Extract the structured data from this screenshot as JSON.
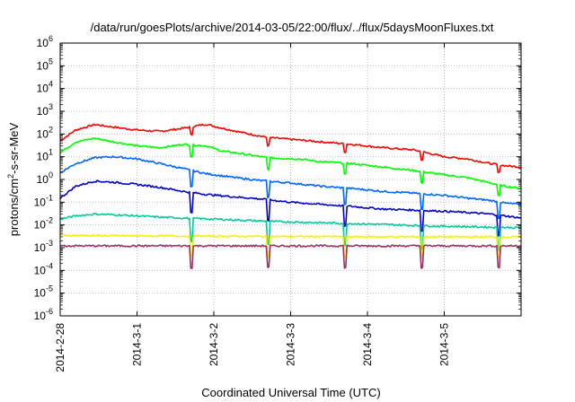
{
  "chart_data": {
    "type": "line",
    "title": "/data/run/goesPlots/archive/2014-03-05/22:00/flux/../flux/5daysMoonFluxes.txt",
    "xlabel": "Coordinated Universal Time (UTC)",
    "ylabel": {
      "pre": "protons/cm",
      "sup": "2",
      "post": "-s-sr-MeV"
    },
    "yscale": "log",
    "ylim_exp": [
      -6,
      6
    ],
    "ytick_exponents": [
      6,
      5,
      4,
      3,
      2,
      1,
      0,
      -1,
      -2,
      -3,
      -4,
      -5,
      -6
    ],
    "xlim_days": [
      0,
      6.0
    ],
    "x_ticks": [
      {
        "day": 0,
        "label": "2014-2-28"
      },
      {
        "day": 1,
        "label": "2014-3-1"
      },
      {
        "day": 2,
        "label": "2014-3-2"
      },
      {
        "day": 3,
        "label": "2014-3-3"
      },
      {
        "day": 4,
        "label": "2014-3-4"
      },
      {
        "day": 5,
        "label": "2014-3-5"
      }
    ],
    "grid": true,
    "dip_days": [
      1.71,
      2.71,
      3.71,
      4.71,
      5.71
    ],
    "series": [
      {
        "color": "#ff0000",
        "points": [
          [
            0.0,
            50
          ],
          [
            0.2,
            150
          ],
          [
            0.45,
            260
          ],
          [
            0.7,
            200
          ],
          [
            1.0,
            150
          ],
          [
            1.3,
            130
          ],
          [
            1.6,
            180
          ],
          [
            1.9,
            270
          ],
          [
            2.05,
            200
          ],
          [
            2.4,
            110
          ],
          [
            2.7,
            70
          ],
          [
            3.1,
            55
          ],
          [
            3.4,
            45
          ],
          [
            3.8,
            35
          ],
          [
            4.2,
            25
          ],
          [
            4.6,
            20
          ],
          [
            5.0,
            10
          ],
          [
            5.3,
            8
          ],
          [
            5.6,
            5
          ],
          [
            5.8,
            4
          ],
          [
            6.0,
            3.5
          ]
        ]
      },
      {
        "color": "#00ff00",
        "points": [
          [
            0.0,
            15
          ],
          [
            0.2,
            45
          ],
          [
            0.45,
            65
          ],
          [
            0.7,
            45
          ],
          [
            1.0,
            30
          ],
          [
            1.3,
            25
          ],
          [
            1.6,
            35
          ],
          [
            1.9,
            30
          ],
          [
            2.1,
            18
          ],
          [
            2.4,
            13
          ],
          [
            2.7,
            9
          ],
          [
            3.1,
            8
          ],
          [
            3.4,
            6
          ],
          [
            3.8,
            5
          ],
          [
            4.2,
            3.5
          ],
          [
            4.6,
            2.5
          ],
          [
            5.0,
            1.6
          ],
          [
            5.3,
            1.2
          ],
          [
            5.6,
            0.7
          ],
          [
            5.8,
            0.5
          ],
          [
            6.0,
            0.4
          ]
        ]
      },
      {
        "color": "#0066ff",
        "points": [
          [
            0.0,
            2
          ],
          [
            0.2,
            5
          ],
          [
            0.45,
            9
          ],
          [
            0.7,
            10
          ],
          [
            1.0,
            8
          ],
          [
            1.3,
            5
          ],
          [
            1.6,
            3
          ],
          [
            1.9,
            1.8
          ],
          [
            2.2,
            1.3
          ],
          [
            2.6,
            0.9
          ],
          [
            3.0,
            0.7
          ],
          [
            3.4,
            0.5
          ],
          [
            3.8,
            0.4
          ],
          [
            4.2,
            0.3
          ],
          [
            4.6,
            0.25
          ],
          [
            5.0,
            0.2
          ],
          [
            5.3,
            0.15
          ],
          [
            5.6,
            0.12
          ],
          [
            5.8,
            0.09
          ],
          [
            6.0,
            0.08
          ]
        ]
      },
      {
        "color": "#0000cc",
        "points": [
          [
            0.0,
            0.15
          ],
          [
            0.2,
            0.5
          ],
          [
            0.45,
            0.85
          ],
          [
            0.7,
            0.75
          ],
          [
            1.0,
            0.6
          ],
          [
            1.3,
            0.45
          ],
          [
            1.6,
            0.3
          ],
          [
            1.9,
            0.22
          ],
          [
            2.2,
            0.18
          ],
          [
            2.6,
            0.14
          ],
          [
            3.0,
            0.1
          ],
          [
            3.4,
            0.08
          ],
          [
            3.8,
            0.065
          ],
          [
            4.2,
            0.05
          ],
          [
            4.6,
            0.045
          ],
          [
            5.0,
            0.04
          ],
          [
            5.3,
            0.035
          ],
          [
            5.6,
            0.03
          ],
          [
            5.8,
            0.025
          ],
          [
            6.0,
            0.02
          ]
        ]
      },
      {
        "color": "#00cc99",
        "points": [
          [
            0.0,
            0.018
          ],
          [
            0.2,
            0.025
          ],
          [
            0.45,
            0.03
          ],
          [
            0.7,
            0.028
          ],
          [
            1.0,
            0.025
          ],
          [
            1.3,
            0.022
          ],
          [
            1.6,
            0.02
          ],
          [
            2.0,
            0.018
          ],
          [
            2.4,
            0.016
          ],
          [
            2.8,
            0.014
          ],
          [
            3.2,
            0.013
          ],
          [
            3.6,
            0.012
          ],
          [
            4.0,
            0.011
          ],
          [
            4.4,
            0.01
          ],
          [
            4.8,
            0.009
          ],
          [
            5.2,
            0.0085
          ],
          [
            5.6,
            0.008
          ],
          [
            6.0,
            0.0075
          ]
        ]
      },
      {
        "color": "#ffee00",
        "points": [
          [
            0.0,
            0.0035
          ],
          [
            1.0,
            0.0033
          ],
          [
            2.0,
            0.0032
          ],
          [
            3.0,
            0.0031
          ],
          [
            4.0,
            0.003
          ],
          [
            5.0,
            0.003
          ],
          [
            6.0,
            0.0029
          ]
        ]
      },
      {
        "color": "#993366",
        "points": [
          [
            0.0,
            0.0012
          ],
          [
            1.0,
            0.0012
          ],
          [
            2.0,
            0.0012
          ],
          [
            3.0,
            0.0012
          ],
          [
            4.0,
            0.0012
          ],
          [
            5.0,
            0.0012
          ],
          [
            6.0,
            0.0012
          ]
        ]
      }
    ]
  }
}
